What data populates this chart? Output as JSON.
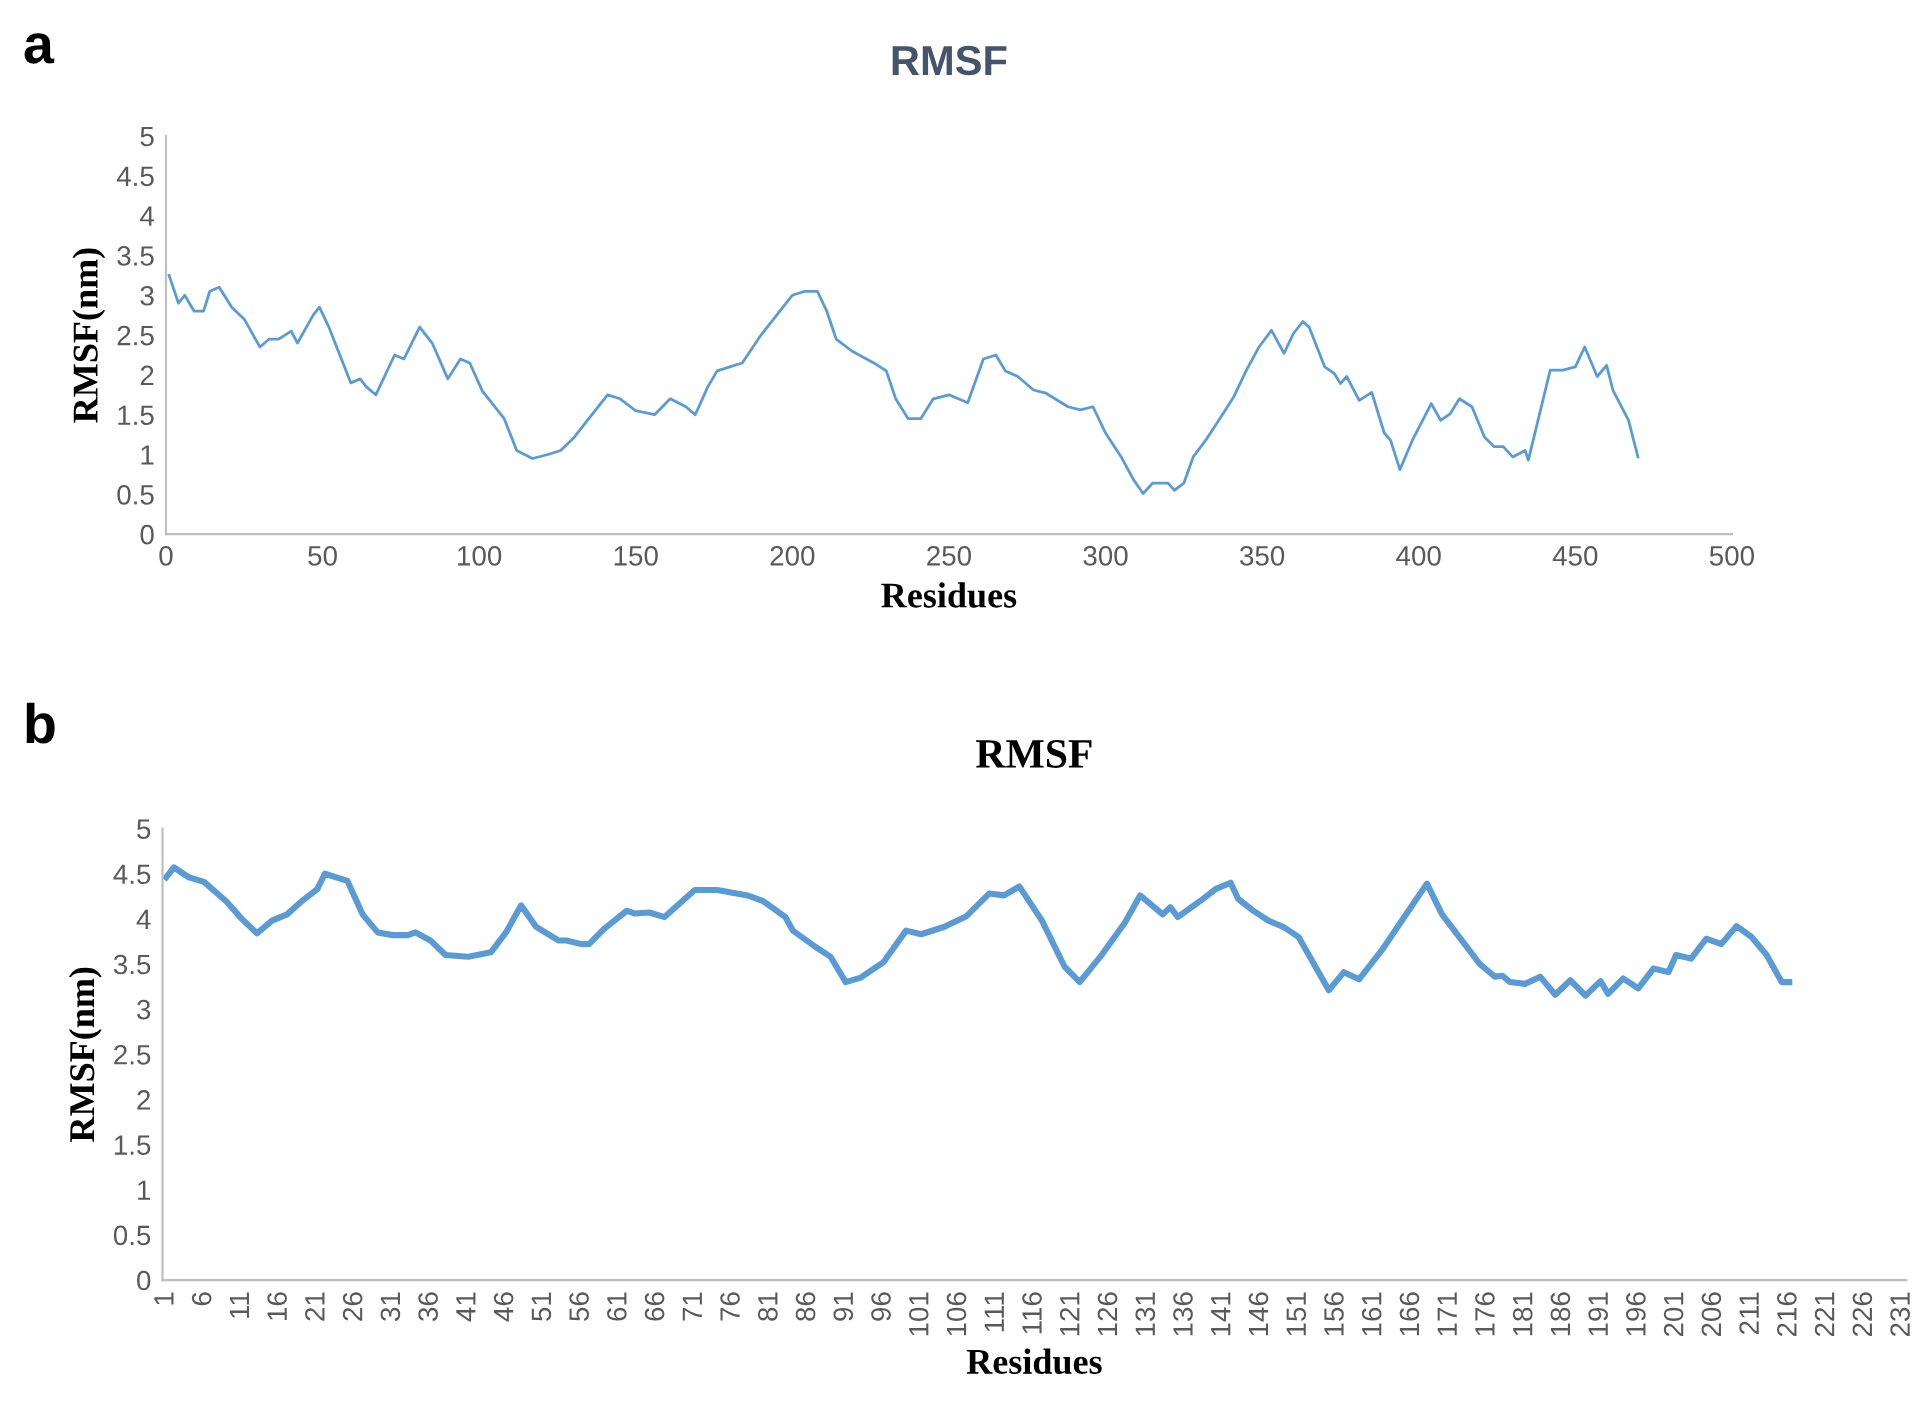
{
  "chart_data": [
    {
      "type": "line",
      "title": "RMSF",
      "xlabel": "Residues",
      "ylabel": "RMSF(nm)",
      "annotations": [
        "a"
      ],
      "xlim": [
        0,
        500
      ],
      "xticks": [
        0,
        50,
        100,
        150,
        200,
        250,
        300,
        350,
        400,
        450,
        500
      ],
      "ylim": [
        0,
        5
      ],
      "yticks": [
        0,
        0.5,
        1,
        1.5,
        2,
        2.5,
        3,
        3.5,
        4,
        4.5,
        5
      ],
      "grid": false,
      "legend": false,
      "marker": "none",
      "line_style": "solid",
      "series": [
        {
          "color": "#5b9bd5",
          "x": [
            1,
            4,
            6,
            9,
            12,
            14,
            17,
            21,
            25,
            30,
            33,
            36,
            40,
            42,
            47,
            49,
            52,
            59,
            62,
            64,
            67,
            73,
            76,
            81,
            85,
            90,
            94,
            97,
            101,
            108,
            112,
            117,
            122,
            126,
            130,
            134,
            141,
            145,
            150,
            156,
            161,
            166,
            169,
            173,
            176,
            180,
            184,
            190,
            195,
            200,
            204,
            208,
            211,
            214,
            219,
            226,
            230,
            233,
            237,
            241,
            245,
            250,
            256,
            261,
            265,
            268,
            272,
            277,
            281,
            288,
            292,
            296,
            300,
            305,
            309,
            312,
            315,
            320,
            322,
            325,
            328,
            332,
            337,
            341,
            345,
            349,
            353,
            357,
            360,
            363,
            365,
            370,
            373,
            375,
            377,
            381,
            385,
            389,
            391,
            394,
            398,
            404,
            407,
            410,
            413,
            417,
            421,
            424,
            427,
            430,
            434,
            435,
            442,
            446,
            450,
            453,
            457,
            460,
            462,
            467,
            470
          ],
          "values": [
            3.25,
            2.9,
            3.0,
            2.8,
            2.8,
            3.05,
            3.1,
            2.85,
            2.7,
            2.35,
            2.45,
            2.45,
            2.55,
            2.4,
            2.75,
            2.85,
            2.6,
            1.9,
            1.95,
            1.85,
            1.75,
            2.25,
            2.2,
            2.6,
            2.4,
            1.95,
            2.2,
            2.15,
            1.8,
            1.45,
            1.05,
            0.95,
            1.0,
            1.05,
            1.2,
            1.4,
            1.75,
            1.7,
            1.55,
            1.5,
            1.7,
            1.6,
            1.5,
            1.85,
            2.05,
            2.1,
            2.15,
            2.5,
            2.75,
            3.0,
            3.05,
            3.05,
            2.8,
            2.45,
            2.3,
            2.15,
            2.05,
            1.7,
            1.45,
            1.45,
            1.7,
            1.75,
            1.65,
            2.2,
            2.25,
            2.05,
            1.98,
            1.81,
            1.77,
            1.6,
            1.56,
            1.6,
            1.27,
            0.97,
            0.68,
            0.51,
            0.64,
            0.64,
            0.55,
            0.64,
            0.97,
            1.18,
            1.48,
            1.73,
            2.06,
            2.35,
            2.56,
            2.27,
            2.52,
            2.67,
            2.6,
            2.1,
            2.02,
            1.89,
            1.98,
            1.68,
            1.78,
            1.27,
            1.18,
            0.81,
            1.18,
            1.64,
            1.43,
            1.51,
            1.7,
            1.6,
            1.22,
            1.1,
            1.1,
            0.97,
            1.05,
            0.93,
            2.06,
            2.06,
            2.1,
            2.35,
            1.98,
            2.12,
            1.81,
            1.43,
            0.97
          ]
        }
      ]
    },
    {
      "type": "line",
      "title": "RMSF",
      "xlabel": "Residues",
      "ylabel": "RMSF(nm)",
      "annotations": [
        "b"
      ],
      "xlim": [
        0.5,
        231.5
      ],
      "xticks": [
        1,
        6,
        11,
        16,
        21,
        26,
        31,
        36,
        41,
        46,
        51,
        56,
        61,
        66,
        71,
        76,
        81,
        86,
        91,
        96,
        101,
        106,
        111,
        116,
        121,
        126,
        131,
        136,
        141,
        146,
        151,
        156,
        161,
        166,
        171,
        176,
        181,
        186,
        191,
        196,
        201,
        206,
        211,
        216,
        221,
        226,
        231
      ],
      "ylim": [
        0,
        5
      ],
      "yticks": [
        0,
        0.5,
        1,
        1.5,
        2,
        2.5,
        3,
        3.5,
        4,
        4.5,
        5
      ],
      "grid": false,
      "legend": false,
      "marker": "none",
      "line_style": "solid",
      "series": [
        {
          "color": "#5b9bd5",
          "x": [
            1,
            2,
            4,
            6,
            9,
            11,
            13,
            15,
            17,
            19,
            21,
            22,
            25,
            27,
            29,
            31,
            33,
            34,
            36,
            38,
            41,
            44,
            46,
            48,
            50,
            53,
            54,
            56,
            57,
            59,
            62,
            63,
            65,
            67,
            69,
            71,
            74,
            76,
            78,
            80,
            83,
            84,
            87,
            89,
            91,
            93,
            96,
            99,
            101,
            104,
            107,
            110,
            112,
            114,
            117,
            120,
            122,
            125,
            128,
            130,
            133,
            134,
            135,
            138,
            140,
            142,
            143,
            145,
            147,
            149,
            151,
            155,
            157,
            159,
            162,
            165,
            168,
            170,
            173,
            175,
            177,
            178,
            179,
            181,
            183,
            185,
            187,
            189,
            191,
            192,
            194,
            196,
            198,
            200,
            201,
            203,
            205,
            207,
            209,
            211,
            213,
            215,
            216
          ],
          "values": [
            4.46,
            4.57,
            4.46,
            4.41,
            4.19,
            4.0,
            3.84,
            3.98,
            4.05,
            4.2,
            4.33,
            4.5,
            4.42,
            4.05,
            3.85,
            3.82,
            3.82,
            3.85,
            3.76,
            3.6,
            3.58,
            3.63,
            3.85,
            4.15,
            3.91,
            3.76,
            3.76,
            3.72,
            3.72,
            3.89,
            4.09,
            4.06,
            4.07,
            4.02,
            4.17,
            4.32,
            4.32,
            4.29,
            4.26,
            4.2,
            4.02,
            3.87,
            3.69,
            3.58,
            3.3,
            3.35,
            3.52,
            3.87,
            3.83,
            3.91,
            4.03,
            4.28,
            4.26,
            4.36,
            3.98,
            3.47,
            3.3,
            3.61,
            3.96,
            4.26,
            4.05,
            4.13,
            4.02,
            4.2,
            4.33,
            4.4,
            4.22,
            4.09,
            3.98,
            3.91,
            3.8,
            3.21,
            3.41,
            3.33,
            3.65,
            4.02,
            4.39,
            4.05,
            3.72,
            3.5,
            3.36,
            3.37,
            3.3,
            3.28,
            3.36,
            3.16,
            3.32,
            3.15,
            3.31,
            3.17,
            3.34,
            3.23,
            3.45,
            3.41,
            3.6,
            3.56,
            3.78,
            3.72,
            3.92,
            3.8,
            3.6,
            3.3,
            3.3
          ]
        }
      ]
    }
  ]
}
